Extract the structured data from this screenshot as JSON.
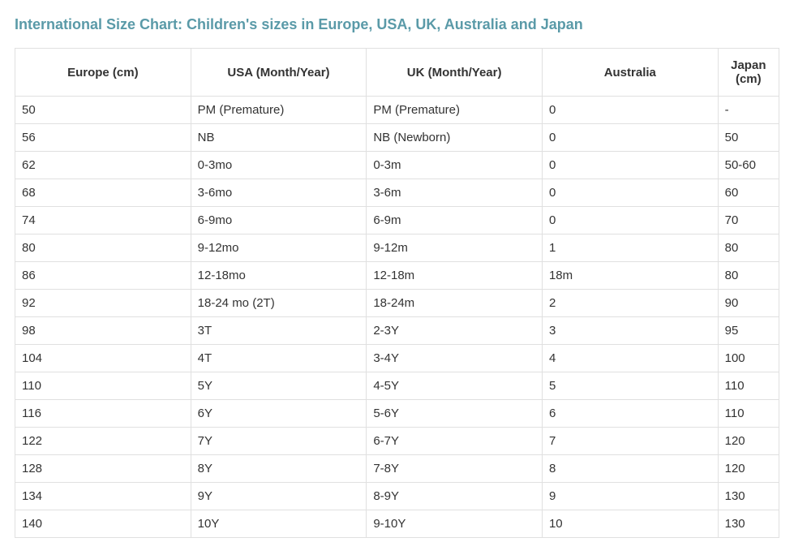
{
  "title": "International Size Chart: Children's sizes in Europe, USA, UK, Australia and Japan",
  "table": {
    "type": "table",
    "title_color": "#5a9aa8",
    "title_fontsize": 18,
    "cell_fontsize": 15,
    "border_color": "#e0e0e0",
    "text_color": "#333333",
    "background_color": "#ffffff",
    "columns": [
      {
        "label": "Europe (cm)",
        "width": "23%",
        "align": "left",
        "header_align": "center"
      },
      {
        "label": "USA (Month/Year)",
        "width": "23%",
        "align": "left",
        "header_align": "center"
      },
      {
        "label": "UK (Month/Year)",
        "width": "23%",
        "align": "left",
        "header_align": "center"
      },
      {
        "label": "Australia",
        "width": "23%",
        "align": "left",
        "header_align": "center"
      },
      {
        "label": "Japan (cm)",
        "width": "8%",
        "align": "left",
        "header_align": "center"
      }
    ],
    "rows": [
      [
        "50",
        "PM (Premature)",
        "PM (Premature)",
        "0",
        "-"
      ],
      [
        "56",
        "NB",
        "NB (Newborn)",
        "0",
        "50"
      ],
      [
        "62",
        "0-3mo",
        "0-3m",
        "0",
        "50-60"
      ],
      [
        "68",
        "3-6mo",
        "3-6m",
        "0",
        "60"
      ],
      [
        "74",
        "6-9mo",
        "6-9m",
        "0",
        "70"
      ],
      [
        "80",
        "9-12mo",
        "9-12m",
        "1",
        "80"
      ],
      [
        "86",
        "12-18mo",
        "12-18m",
        "18m",
        "80"
      ],
      [
        "92",
        "18-24 mo (2T)",
        "18-24m",
        "2",
        "90"
      ],
      [
        "98",
        "3T",
        "2-3Y",
        "3",
        "95"
      ],
      [
        "104",
        "4T",
        "3-4Y",
        "4",
        "100"
      ],
      [
        "110",
        "5Y",
        "4-5Y",
        "5",
        "110"
      ],
      [
        "116",
        "6Y",
        "5-6Y",
        "6",
        "110"
      ],
      [
        "122",
        "7Y",
        "6-7Y",
        "7",
        "120"
      ],
      [
        "128",
        "8Y",
        "7-8Y",
        "8",
        "120"
      ],
      [
        "134",
        "9Y",
        "8-9Y",
        "9",
        "130"
      ],
      [
        "140",
        "10Y",
        "9-10Y",
        "10",
        "130"
      ]
    ]
  }
}
